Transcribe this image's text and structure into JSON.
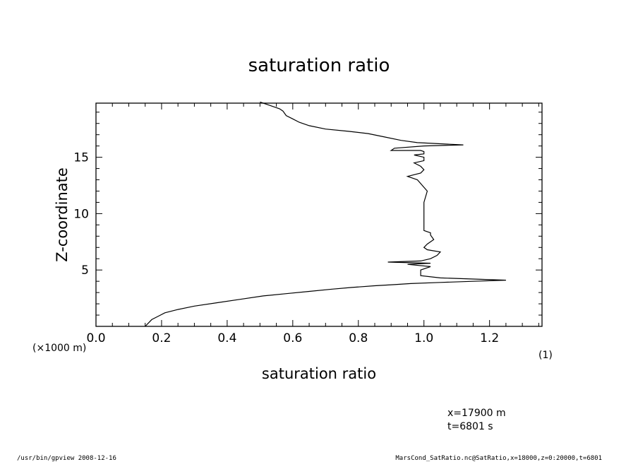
{
  "chart_data": {
    "type": "line",
    "title": "saturation ratio",
    "xlabel": "saturation ratio",
    "ylabel": "Z-coordinate",
    "x_unit": "(1)",
    "y_unit": "(×1000 m)",
    "xlim": [
      0.0,
      1.36
    ],
    "ylim": [
      0.0,
      19.8
    ],
    "xticks": [
      "0.0",
      "0.2",
      "0.4",
      "0.6",
      "0.8",
      "1.0",
      "1.2"
    ],
    "yticks": [
      "5",
      "10",
      "15"
    ],
    "series": [
      {
        "x": [
          0.15,
          0.16,
          0.17,
          0.19,
          0.21,
          0.25,
          0.3,
          0.37,
          0.44,
          0.51,
          0.58,
          0.65,
          0.72,
          0.78,
          0.85,
          0.91,
          0.96,
          1.05,
          1.15,
          1.25,
          1.05,
          0.99,
          0.99,
          1.02,
          0.95,
          1.02,
          0.89,
          0.99,
          1.02,
          1.04,
          1.05,
          1.01,
          1.0,
          1.01,
          1.03,
          1.02,
          1.02,
          1.0,
          1.0,
          1.0,
          1.0,
          1.0,
          1.0,
          1.01,
          0.98,
          0.95,
          0.99,
          1.0,
          0.99,
          0.97,
          1.0,
          1.0,
          0.97,
          1.0,
          1.0,
          0.99,
          0.9,
          0.91,
          1.0,
          1.12,
          0.98,
          0.93,
          0.88,
          0.83,
          0.77,
          0.7,
          0.65,
          0.62,
          0.6,
          0.58,
          0.575,
          0.57,
          0.56,
          0.55,
          0.54,
          0.53,
          0.52,
          0.51,
          0.5
        ],
        "y": [
          0.0,
          0.3,
          0.6,
          0.9,
          1.2,
          1.5,
          1.8,
          2.1,
          2.4,
          2.7,
          2.9,
          3.1,
          3.3,
          3.45,
          3.6,
          3.7,
          3.8,
          3.9,
          4.0,
          4.1,
          4.3,
          4.5,
          5.0,
          5.3,
          5.5,
          5.6,
          5.7,
          5.8,
          6.0,
          6.3,
          6.6,
          6.8,
          7.0,
          7.3,
          7.7,
          8.1,
          8.3,
          8.5,
          9.0,
          9.5,
          10.0,
          10.5,
          11.0,
          12.0,
          13.0,
          13.3,
          13.6,
          13.9,
          14.2,
          14.5,
          14.7,
          15.0,
          15.2,
          15.3,
          15.5,
          15.6,
          15.6,
          15.8,
          16.0,
          16.1,
          16.3,
          16.5,
          16.8,
          17.1,
          17.3,
          17.5,
          17.8,
          18.1,
          18.4,
          18.7,
          18.9,
          19.1,
          19.3,
          19.4,
          19.5,
          19.6,
          19.7,
          19.8,
          19.9
        ]
      }
    ],
    "annotations": {
      "x_value": "x=17900 m",
      "t_value": "t=6801 s"
    },
    "footer_left": "/usr/bin/gpview  2008-12-16",
    "footer_right": "MarsCond_SatRatio.nc@SatRatio,x=18000,z=0:20000,t=6801"
  },
  "colors": {
    "line": "#000000",
    "background": "#ffffff"
  }
}
